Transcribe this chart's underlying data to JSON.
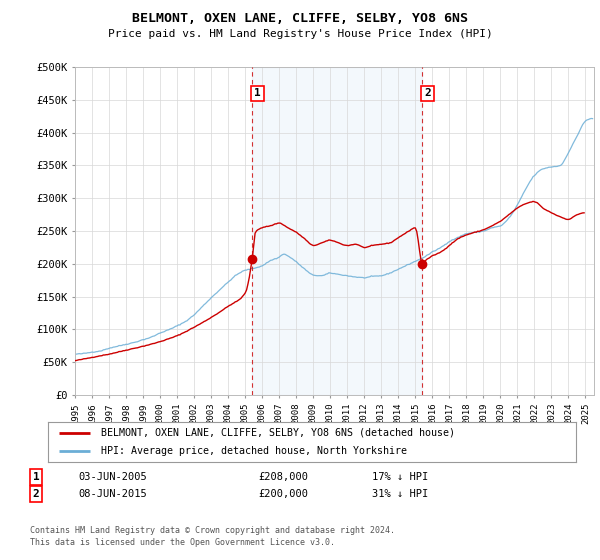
{
  "title": "BELMONT, OXEN LANE, CLIFFE, SELBY, YO8 6NS",
  "subtitle": "Price paid vs. HM Land Registry's House Price Index (HPI)",
  "ylabel_ticks": [
    "£0",
    "£50K",
    "£100K",
    "£150K",
    "£200K",
    "£250K",
    "£300K",
    "£350K",
    "£400K",
    "£450K",
    "£500K"
  ],
  "ytick_values": [
    0,
    50000,
    100000,
    150000,
    200000,
    250000,
    300000,
    350000,
    400000,
    450000,
    500000
  ],
  "ylim": [
    0,
    500000
  ],
  "xlim_start": 1995.0,
  "xlim_end": 2025.5,
  "hpi_color": "#6baed6",
  "hpi_fill_color": "#ddeeff",
  "price_color": "#cc0000",
  "vline_color": "#cc0000",
  "sale1_x": 2005.42,
  "sale1_y": 208000,
  "sale2_x": 2015.42,
  "sale2_y": 200000,
  "legend_house_label": "BELMONT, OXEN LANE, CLIFFE, SELBY, YO8 6NS (detached house)",
  "legend_hpi_label": "HPI: Average price, detached house, North Yorkshire",
  "annotation1_label": "1",
  "annotation2_label": "2",
  "table_row1": [
    "1",
    "03-JUN-2005",
    "£208,000",
    "17% ↓ HPI"
  ],
  "table_row2": [
    "2",
    "08-JUN-2015",
    "£200,000",
    "31% ↓ HPI"
  ],
  "footnote1": "Contains HM Land Registry data © Crown copyright and database right 2024.",
  "footnote2": "This data is licensed under the Open Government Licence v3.0.",
  "background_color": "#ffffff",
  "grid_color": "#d8d8d8"
}
